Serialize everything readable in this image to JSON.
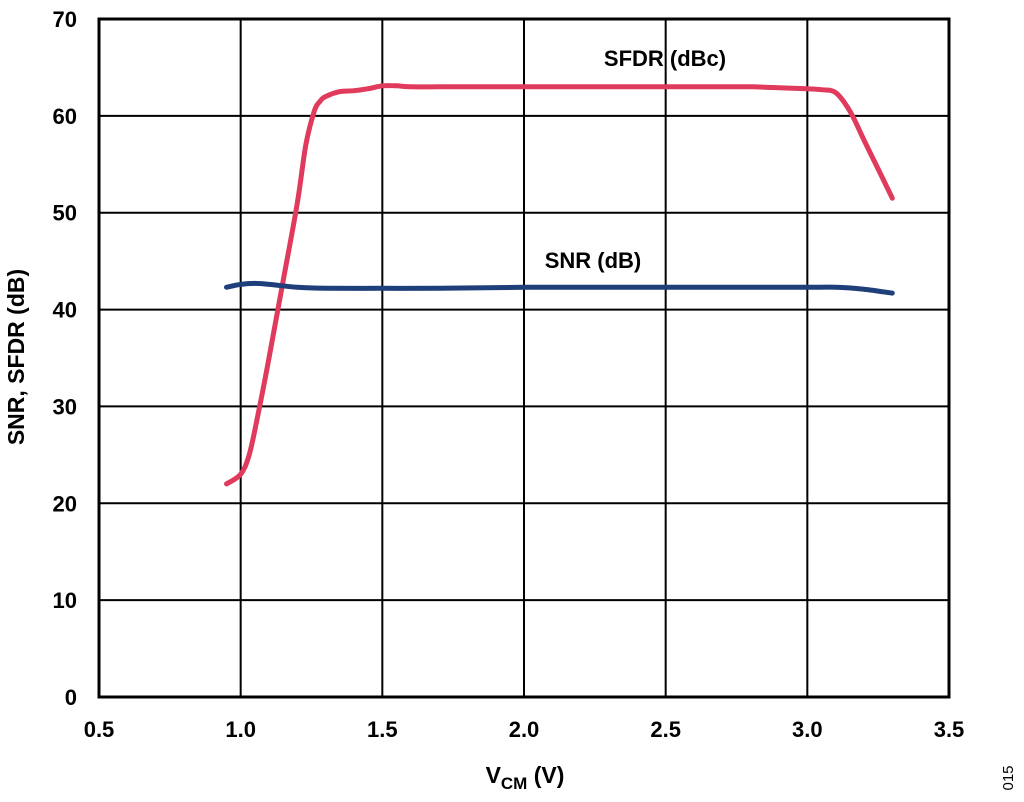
{
  "chart_data": {
    "type": "line",
    "xlabel": "V",
    "xlabel_subscript": "CM",
    "xlabel_unit": " (V)",
    "ylabel": "SNR, SFDR (dB)",
    "xlim": [
      0.5,
      3.5
    ],
    "ylim": [
      0,
      70
    ],
    "x_ticks": [
      "0.5",
      "1.0",
      "1.5",
      "2.0",
      "2.5",
      "3.0",
      "3.5"
    ],
    "y_ticks": [
      "0",
      "10",
      "20",
      "30",
      "40",
      "50",
      "60",
      "70"
    ],
    "grid": true,
    "figure_id": "015",
    "series": [
      {
        "name": "SFDR (dBc)",
        "color": "#e03a5c",
        "x": [
          0.95,
          1.0,
          1.03,
          1.06,
          1.1,
          1.15,
          1.2,
          1.23,
          1.26,
          1.28,
          1.3,
          1.35,
          1.4,
          1.45,
          1.5,
          1.55,
          1.6,
          1.7,
          1.8,
          2.0,
          2.2,
          2.4,
          2.6,
          2.8,
          2.9,
          3.0,
          3.05,
          3.1,
          3.15,
          3.2,
          3.25,
          3.3
        ],
        "y": [
          22,
          23,
          25,
          29,
          35,
          43,
          51,
          57,
          60.5,
          61.5,
          62,
          62.5,
          62.6,
          62.8,
          63.1,
          63.1,
          63.0,
          63.0,
          63.0,
          63.0,
          63.0,
          63.0,
          63.0,
          63.0,
          62.9,
          62.8,
          62.7,
          62.4,
          60.5,
          57.5,
          54.5,
          51.5
        ]
      },
      {
        "name": "SNR (dB)",
        "color": "#1e3f7a",
        "x": [
          0.95,
          1.0,
          1.05,
          1.1,
          1.2,
          1.3,
          1.5,
          1.7,
          2.0,
          2.5,
          2.8,
          3.0,
          3.1,
          3.2,
          3.3
        ],
        "y": [
          42.3,
          42.6,
          42.7,
          42.6,
          42.3,
          42.2,
          42.2,
          42.2,
          42.3,
          42.3,
          42.3,
          42.3,
          42.3,
          42.1,
          41.7
        ]
      }
    ]
  }
}
